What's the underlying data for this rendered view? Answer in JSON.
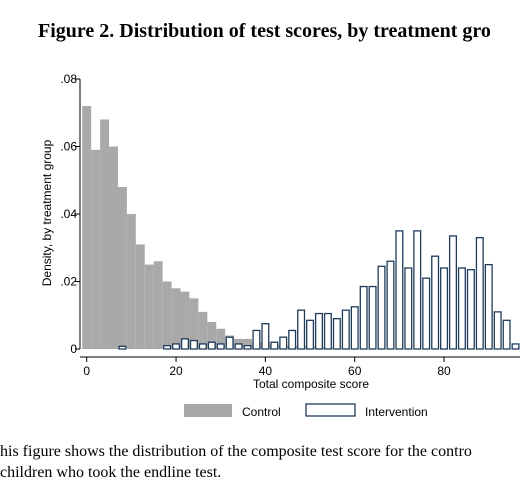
{
  "figure": {
    "title": "Figure 2. Distribution of test scores, by treatment gro",
    "caption_line1": "his figure shows the distribution of the composite test score for the contro",
    "caption_line2": " children who took the endline test."
  },
  "colors": {
    "control": "#a9a9a9",
    "intervention_fill": "#ffffff",
    "intervention_stroke": "#1f3b5a",
    "axis": "#000000"
  },
  "chart_data": {
    "type": "bar",
    "title": "",
    "xlabel": "Total composite score",
    "ylabel": "Density, by treatment group",
    "xlim": [
      -1.5,
      97
    ],
    "ylim": [
      0,
      0.08
    ],
    "xticks": [
      0,
      20,
      40,
      60,
      80
    ],
    "yticks": [
      0,
      0.02,
      0.04,
      0.06,
      0.08
    ],
    "ytick_labels": [
      "0",
      ".02",
      ".04",
      ".06",
      ".08"
    ],
    "bin_width": 2,
    "grid": false,
    "legend_position": "bottom",
    "series": [
      {
        "name": "Control",
        "x": [
          0,
          2,
          4,
          6,
          8,
          10,
          12,
          14,
          16,
          18,
          20,
          22,
          24,
          26,
          28,
          30,
          32,
          34,
          36,
          38,
          40,
          42,
          44,
          46,
          48,
          50,
          52,
          54,
          56,
          58
        ],
        "values": [
          0.072,
          0.059,
          0.068,
          0.06,
          0.048,
          0.04,
          0.031,
          0.025,
          0.026,
          0.02,
          0.018,
          0.017,
          0.015,
          0.011,
          0.008,
          0.006,
          0.004,
          0.003,
          0.003,
          0.002,
          0.002,
          0.0015,
          0.001,
          0.001,
          0.001,
          0.0008,
          0.0006,
          0.0005,
          0.0004,
          0.0002
        ]
      },
      {
        "name": "Intervention",
        "x": [
          8,
          18,
          20,
          22,
          24,
          26,
          28,
          30,
          32,
          34,
          36,
          38,
          40,
          42,
          44,
          46,
          48,
          50,
          52,
          54,
          56,
          58,
          60,
          62,
          64,
          66,
          68,
          70,
          72,
          74,
          76,
          78,
          80,
          82,
          84,
          86,
          88,
          90,
          92,
          94,
          96
        ],
        "values": [
          0.0008,
          0.001,
          0.0015,
          0.003,
          0.0025,
          0.0015,
          0.002,
          0.0015,
          0.0035,
          0.0015,
          0.001,
          0.0055,
          0.0075,
          0.002,
          0.0035,
          0.0055,
          0.0115,
          0.0085,
          0.0105,
          0.0105,
          0.009,
          0.0115,
          0.0125,
          0.0185,
          0.0185,
          0.0245,
          0.026,
          0.035,
          0.024,
          0.035,
          0.021,
          0.0275,
          0.024,
          0.0335,
          0.024,
          0.0235,
          0.033,
          0.025,
          0.011,
          0.0085,
          0.0015
        ]
      }
    ]
  }
}
